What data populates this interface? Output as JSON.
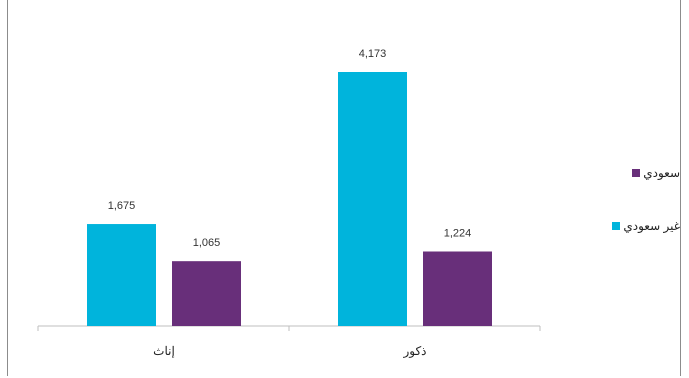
{
  "chart_data": {
    "type": "bar",
    "title": "",
    "categories": [
      "إناث",
      "ذكور"
    ],
    "series": [
      {
        "name": "غير سعودي",
        "color": "#00b4dc",
        "values": [
          1675,
          4173
        ]
      },
      {
        "name": "سعودي",
        "color": "#682f7a",
        "values": [
          1065,
          1224
        ]
      }
    ],
    "value_labels": {
      "غير سعودي": [
        "1,675",
        "4,173"
      ],
      "سعودي": [
        "1,065",
        "1,224"
      ]
    },
    "ylim": [
      0,
      5000
    ],
    "grid": false,
    "legend_position": "right"
  }
}
